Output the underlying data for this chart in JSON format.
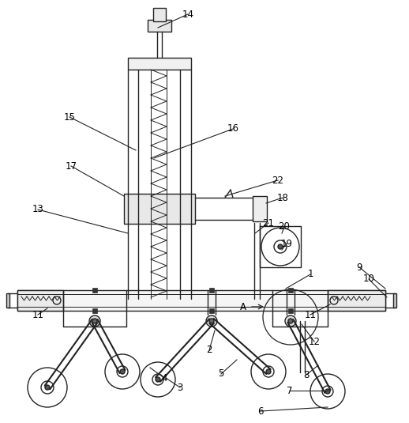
{
  "bg_color": "#ffffff",
  "line_color": "#222222",
  "lw": 1.0,
  "tlw": 0.7,
  "figsize": [
    5.18,
    5.35
  ],
  "dpi": 100
}
